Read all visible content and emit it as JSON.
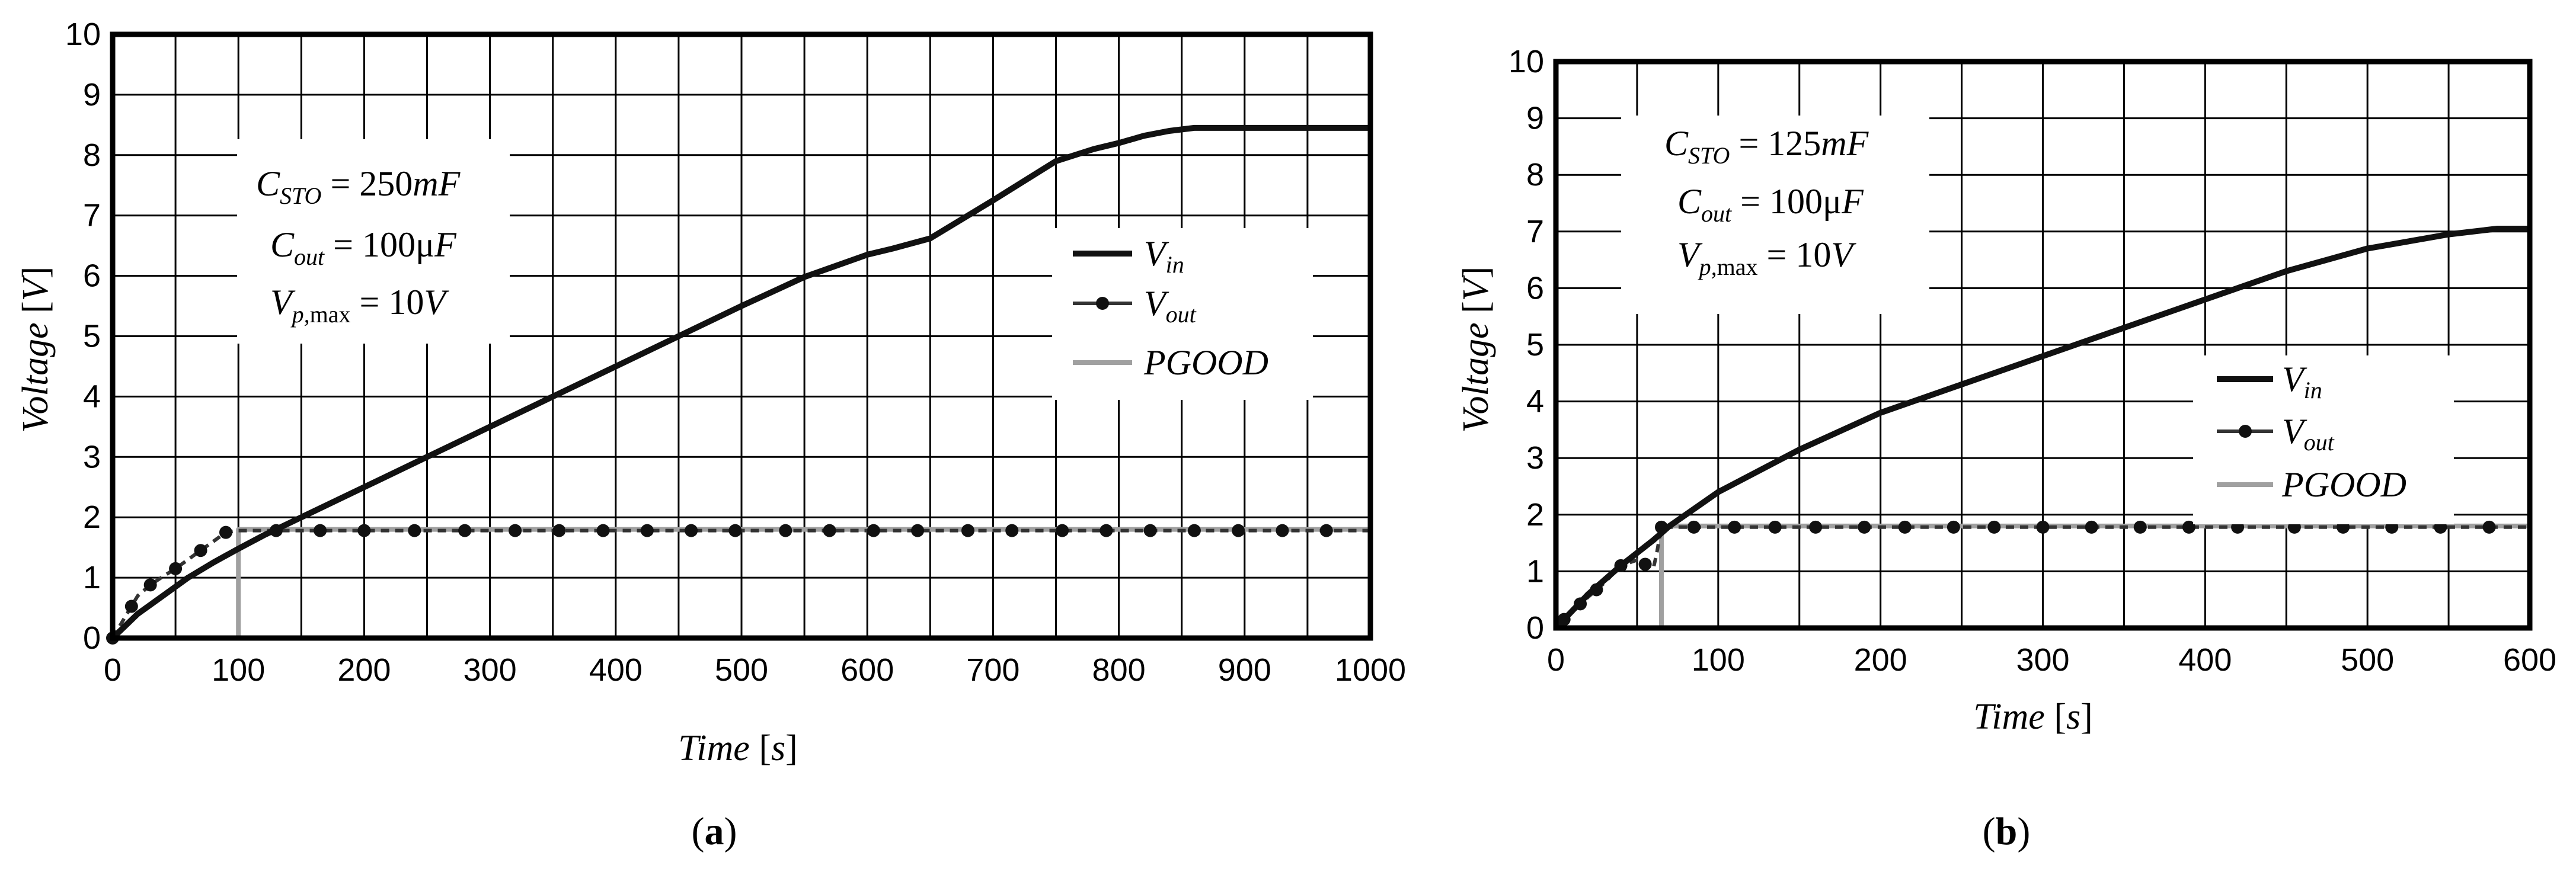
{
  "colors": {
    "vin": "#111111",
    "vout": "#333333",
    "pgood": "#a0a0a0",
    "grid": "#000000"
  },
  "chart_data": [
    {
      "id": "a",
      "type": "line",
      "caption": "a",
      "xlabel": "Time",
      "xunit": "s",
      "ylabel": "Voltage",
      "yunit": "V",
      "xlim": [
        0,
        1000
      ],
      "ylim": [
        0,
        10
      ],
      "xticks": [
        0,
        100,
        200,
        300,
        400,
        500,
        600,
        700,
        800,
        900,
        1000
      ],
      "yticks": [
        0,
        1,
        2,
        3,
        4,
        5,
        6,
        7,
        8,
        9,
        10
      ],
      "xgrid_step": 50,
      "ygrid_step": 1,
      "annotation": [
        {
          "sym": "C",
          "sub": "STO",
          "rest": " = 250",
          "unit": "mF"
        },
        {
          "sym": "C",
          "sub": "out",
          "rest": " = 100μ",
          "unit": "F"
        },
        {
          "sym": "V",
          "sub": "p,",
          "submax": "max",
          "rest": " = 10",
          "unit": "V"
        }
      ],
      "legend": {
        "position": "right-middle",
        "entries": [
          "V_in",
          "V_out",
          "PGOOD"
        ]
      },
      "series": [
        {
          "name": "V_in",
          "style": "thick",
          "x": [
            0,
            10,
            20,
            40,
            60,
            80,
            100,
            120,
            150,
            200,
            250,
            300,
            350,
            400,
            450,
            500,
            550,
            600,
            620,
            650,
            700,
            750,
            780,
            800,
            820,
            840,
            860,
            880,
            900,
            1000
          ],
          "y": [
            0,
            0.2,
            0.4,
            0.7,
            1.0,
            1.25,
            1.48,
            1.7,
            2.0,
            2.5,
            3.0,
            3.5,
            4.0,
            4.5,
            5.0,
            5.5,
            5.98,
            6.35,
            6.45,
            6.62,
            7.25,
            7.9,
            8.1,
            8.2,
            8.32,
            8.4,
            8.45,
            8.45,
            8.45,
            8.45
          ]
        },
        {
          "name": "V_out",
          "style": "dotted-marker",
          "x": [
            0,
            10,
            20,
            30,
            40,
            50,
            60,
            70,
            80,
            90,
            100,
            200,
            300,
            400,
            500,
            600,
            700,
            800,
            900,
            1000
          ],
          "y": [
            0,
            0.35,
            0.7,
            0.88,
            1.02,
            1.15,
            1.3,
            1.45,
            1.6,
            1.75,
            1.78,
            1.78,
            1.78,
            1.78,
            1.78,
            1.78,
            1.78,
            1.78,
            1.78,
            1.78
          ]
        },
        {
          "name": "PGOOD",
          "style": "gray-step",
          "x": [
            20,
            100,
            100,
            1000
          ],
          "y": [
            0,
            0,
            1.8,
            1.8
          ]
        }
      ],
      "marker_x": [
        0,
        15,
        30,
        50,
        70,
        90,
        130,
        165,
        200,
        240,
        280,
        320,
        355,
        390,
        425,
        460,
        495,
        535,
        570,
        605,
        640,
        680,
        715,
        755,
        790,
        825,
        860,
        895,
        930,
        965
      ]
    },
    {
      "id": "b",
      "type": "line",
      "caption": "b",
      "xlabel": "Time",
      "xunit": "s",
      "ylabel": "Voltage",
      "yunit": "V",
      "xlim": [
        0,
        600
      ],
      "ylim": [
        0,
        10
      ],
      "xticks": [
        0,
        100,
        200,
        300,
        400,
        500,
        600
      ],
      "yticks": [
        0,
        1,
        2,
        3,
        4,
        5,
        6,
        7,
        8,
        9,
        10
      ],
      "xgrid_step": 50,
      "ygrid_step": 1,
      "annotation": [
        {
          "sym": "C",
          "sub": "STO",
          "rest": " = 125",
          "unit": "mF"
        },
        {
          "sym": "C",
          "sub": "out",
          "rest": " = 100μ",
          "unit": "F"
        },
        {
          "sym": "V",
          "sub": "p,",
          "submax": "max",
          "rest": " = 10",
          "unit": "V"
        }
      ],
      "legend": {
        "position": "right-middle",
        "entries": [
          "V_in",
          "V_out",
          "PGOOD"
        ]
      },
      "series": [
        {
          "name": "V_in",
          "style": "thick",
          "x": [
            0,
            10,
            20,
            40,
            60,
            70,
            100,
            150,
            200,
            250,
            300,
            350,
            400,
            450,
            500,
            550,
            580,
            600
          ],
          "y": [
            0,
            0.3,
            0.6,
            1.1,
            1.55,
            1.8,
            2.4,
            3.15,
            3.8,
            4.3,
            4.8,
            5.3,
            5.8,
            6.3,
            6.7,
            6.95,
            7.05,
            7.05
          ]
        },
        {
          "name": "V_out",
          "style": "dotted-marker",
          "x": [
            0,
            10,
            20,
            30,
            40,
            50,
            60,
            62,
            65,
            600
          ],
          "y": [
            0,
            0.3,
            0.55,
            0.8,
            1.1,
            1.2,
            1.05,
            1.3,
            1.78,
            1.78
          ]
        },
        {
          "name": "PGOOD",
          "style": "gray-step",
          "x": [
            0,
            65,
            65,
            600
          ],
          "y": [
            0,
            0,
            1.8,
            1.8
          ]
        }
      ],
      "marker_x": [
        5,
        15,
        25,
        40,
        55,
        65,
        85,
        110,
        135,
        160,
        190,
        215,
        245,
        270,
        300,
        330,
        360,
        390,
        420,
        455,
        485,
        515,
        545,
        575
      ]
    }
  ]
}
